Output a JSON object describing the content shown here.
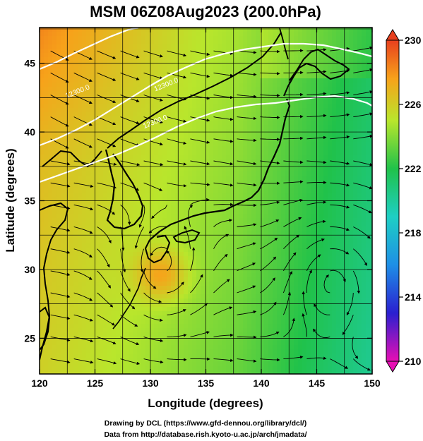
{
  "chart_data": {
    "type": "heatmap",
    "title": "MSM 06Z08Aug2023 (200.0hPa)",
    "xlabel": "Longitude (degrees)",
    "ylabel": "Latitude  (degrees)",
    "xlim": [
      120,
      150
    ],
    "ylim": [
      22.4,
      47.6
    ],
    "xticks": [
      "120",
      "125",
      "130",
      "135",
      "140",
      "145",
      "150"
    ],
    "xtick_values": [
      120,
      125,
      130,
      135,
      140,
      145,
      150
    ],
    "yticks": [
      "25",
      "30",
      "35",
      "40",
      "45"
    ],
    "ytick_values": [
      25,
      30,
      35,
      40,
      45
    ],
    "grid": true,
    "overlay": "streamlines",
    "contour_labels": [
      {
        "text": "12300.0",
        "lon": 123.5,
        "lat": 42.8
      },
      {
        "text": "12300.0",
        "lon": 131.5,
        "lat": 43.3
      },
      {
        "text": "12300.0",
        "lon": 130.5,
        "lat": 40.6
      }
    ],
    "colorbar": {
      "range": [
        210,
        230
      ],
      "ticks": [
        "230",
        "226",
        "222",
        "218",
        "214",
        "210"
      ],
      "tick_values": [
        230,
        226,
        222,
        218,
        214,
        210
      ],
      "colors": [
        "#e70fb4",
        "#2a1fd0",
        "#1e8fe6",
        "#1ecfc4",
        "#20c24a",
        "#b9e62c",
        "#f7a21a",
        "#e8401e"
      ]
    },
    "warm_core": {
      "lon": 131,
      "lat": 29.6,
      "value": 229
    }
  },
  "footer": {
    "line1": "Drawing by DCL (https://www.gfd-dennou.org/library/dcl/)",
    "line2": "Data from http://database.rish.kyoto-u.ac.jp/arch/jmadata/"
  }
}
